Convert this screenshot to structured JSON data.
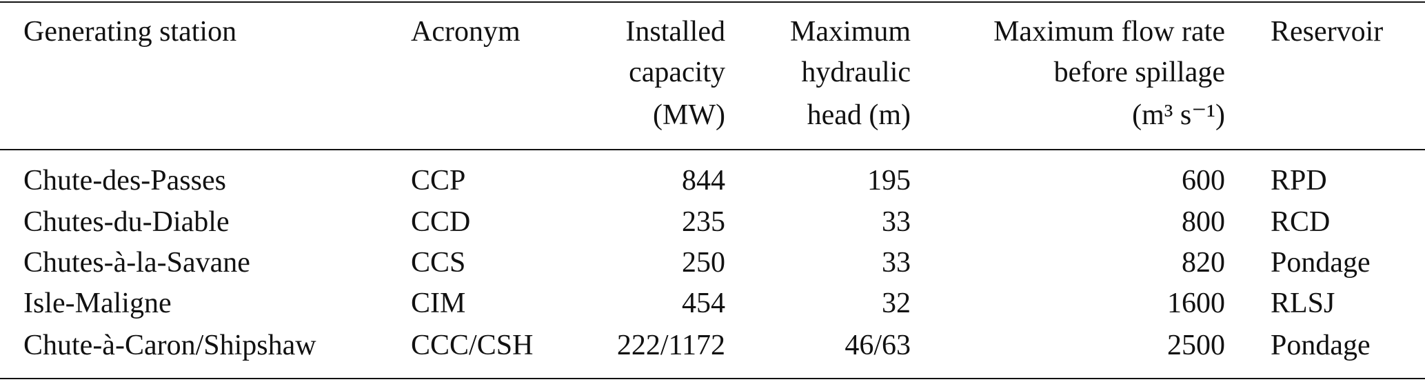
{
  "table": {
    "header": [
      [
        "Generating station"
      ],
      [
        "Acronym"
      ],
      [
        "Installed",
        "capacity",
        "(MW)"
      ],
      [
        "Maximum",
        "hydraulic",
        "head (m)"
      ],
      [
        "Maximum flow rate",
        "before spillage",
        "(m³ s⁻¹)"
      ],
      [
        "Reservoir"
      ]
    ],
    "rows": [
      [
        "Chute-des-Passes",
        "CCP",
        844,
        195,
        600,
        "RPD"
      ],
      [
        "Chutes-du-Diable",
        "CCD",
        235,
        33,
        800,
        "RCD"
      ],
      [
        "Chutes-à-la-Savane",
        "CCS",
        250,
        33,
        820,
        "Pondage"
      ],
      [
        "Isle-Maligne",
        "CIM",
        454,
        32,
        1600,
        "RLSJ"
      ],
      [
        "Chute-à-Caron/Shipshaw",
        "CCC/CSH",
        "222/1172",
        "46/63",
        2500,
        "Pondage"
      ]
    ]
  }
}
